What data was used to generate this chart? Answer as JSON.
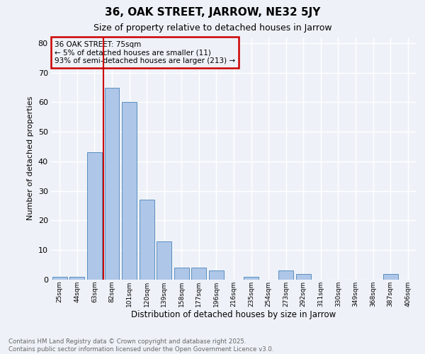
{
  "title1": "36, OAK STREET, JARROW, NE32 5JY",
  "title2": "Size of property relative to detached houses in Jarrow",
  "xlabel": "Distribution of detached houses by size in Jarrow",
  "ylabel": "Number of detached properties",
  "categories": [
    "25sqm",
    "44sqm",
    "63sqm",
    "82sqm",
    "101sqm",
    "120sqm",
    "139sqm",
    "158sqm",
    "177sqm",
    "196sqm",
    "216sqm",
    "235sqm",
    "254sqm",
    "273sqm",
    "292sqm",
    "311sqm",
    "330sqm",
    "349sqm",
    "368sqm",
    "387sqm",
    "406sqm"
  ],
  "values": [
    1,
    1,
    43,
    65,
    60,
    27,
    13,
    4,
    4,
    3,
    0,
    1,
    0,
    3,
    2,
    0,
    0,
    0,
    0,
    2,
    0
  ],
  "bar_color": "#aec6e8",
  "bar_edge_color": "#5a8fc0",
  "vline_x_index": 3,
  "vline_color": "#cc0000",
  "annotation_text": "36 OAK STREET: 75sqm\n← 5% of detached houses are smaller (11)\n93% of semi-detached houses are larger (213) →",
  "annotation_box_color": "#cc0000",
  "background_color": "#eef2f8",
  "grid_color": "#ffffff",
  "ylim": [
    0,
    82
  ],
  "yticks": [
    0,
    10,
    20,
    30,
    40,
    50,
    60,
    70,
    80
  ],
  "footer_text": "Contains HM Land Registry data © Crown copyright and database right 2025.\nContains public sector information licensed under the Open Government Licence v3.0.",
  "footer_color": "#666666",
  "title1_fontsize": 11,
  "title2_fontsize": 9,
  "ylabel_fontsize": 8,
  "xlabel_fontsize": 8.5
}
